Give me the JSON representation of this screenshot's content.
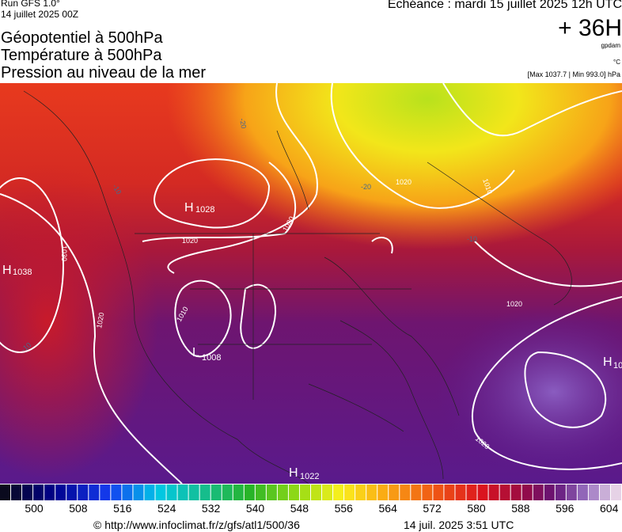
{
  "header": {
    "run": "Run GFS 1.0°",
    "run_date": "14 juillet 2025 00Z",
    "titles": [
      "Géopotentiel à 500hPa",
      "Température à 500hPa",
      "Pression au niveau de la mer"
    ],
    "valid": "Echéance : mardi 15 juillet 2025 12h UTC",
    "lead": "+ 36H",
    "unit_geo": "gpdam",
    "unit_temp": "°C",
    "range": "[Max 1037.7 | Min 993.0] hPa"
  },
  "map": {
    "labels": [
      "H",
      "1028",
      "H",
      "1038",
      "L",
      "1008",
      "H",
      "1022",
      "H",
      "10",
      "1020",
      "1030",
      "1020",
      "1010",
      "1020",
      "1020",
      "1020",
      "1010",
      "1020",
      "-20",
      "-10",
      "-10",
      "-20",
      "-10"
    ]
  },
  "colorbar": {
    "labels": [
      "500",
      "508",
      "516",
      "524",
      "532",
      "540",
      "548",
      "556",
      "564",
      "572",
      "580",
      "588",
      "596",
      "604"
    ]
  },
  "footer": {
    "url": "© http://www.infoclimat.fr/z/gfs/atl1/500/36",
    "stamp": "14 juil. 2025  3:51 UTC"
  }
}
